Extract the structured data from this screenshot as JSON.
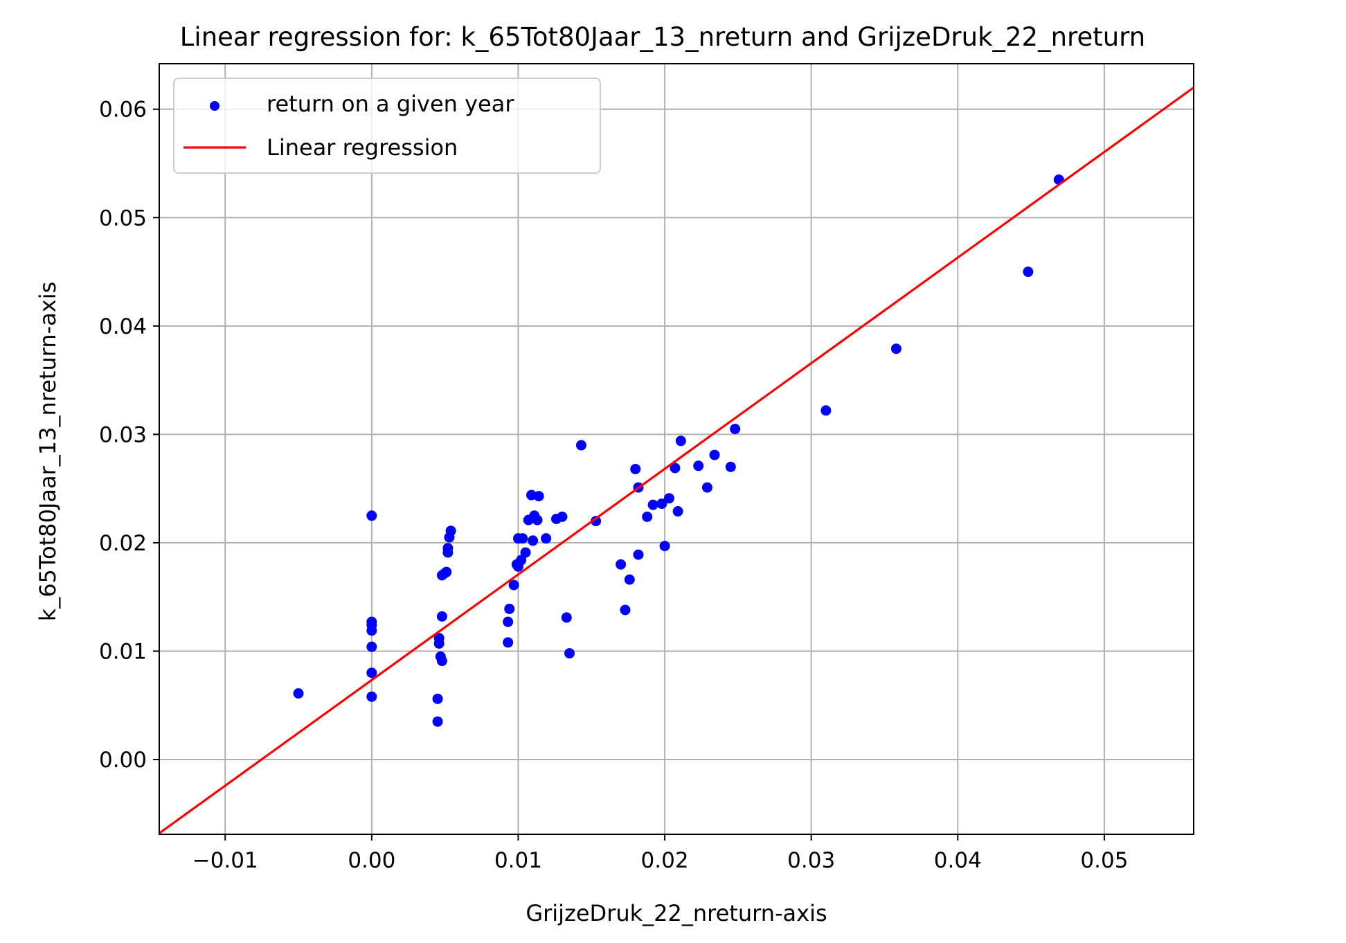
{
  "chart_data": {
    "type": "scatter",
    "title": "Linear regression for: k_65Tot80Jaar_13_nreturn and GrijzeDruk_22_nreturn",
    "xlabel": "GrijzeDruk_22_nreturn-axis",
    "ylabel": "k_65Tot80Jaar_13_nreturn-axis",
    "xlim": [
      -0.0145,
      0.0561
    ],
    "ylim": [
      -0.0069,
      0.0642
    ],
    "xticks": [
      -0.01,
      0.0,
      0.01,
      0.02,
      0.03,
      0.04,
      0.05
    ],
    "xtick_labels": [
      "−0.01",
      "0.00",
      "0.01",
      "0.02",
      "0.03",
      "0.04",
      "0.05"
    ],
    "yticks": [
      0.0,
      0.01,
      0.02,
      0.03,
      0.04,
      0.05,
      0.06
    ],
    "ytick_labels": [
      "0.00",
      "0.01",
      "0.02",
      "0.03",
      "0.04",
      "0.05",
      "0.06"
    ],
    "grid": true,
    "legend_position": "upper-left",
    "series": [
      {
        "name": "return on a given year",
        "kind": "scatter",
        "color": "#0000ff",
        "points": [
          [
            -0.005,
            0.0061
          ],
          [
            0.0,
            0.0225
          ],
          [
            0.0,
            0.0127
          ],
          [
            0.0,
            0.0124
          ],
          [
            0.0,
            0.0119
          ],
          [
            0.0,
            0.0104
          ],
          [
            0.0,
            0.008
          ],
          [
            0.0,
            0.0058
          ],
          [
            0.0045,
            0.0056
          ],
          [
            0.0045,
            0.0035
          ],
          [
            0.0046,
            0.0112
          ],
          [
            0.0046,
            0.0107
          ],
          [
            0.0047,
            0.0095
          ],
          [
            0.0048,
            0.0091
          ],
          [
            0.0048,
            0.0132
          ],
          [
            0.0048,
            0.017
          ],
          [
            0.005,
            0.0172
          ],
          [
            0.0051,
            0.0173
          ],
          [
            0.0052,
            0.0195
          ],
          [
            0.0052,
            0.0191
          ],
          [
            0.0053,
            0.0205
          ],
          [
            0.0054,
            0.0211
          ],
          [
            0.0093,
            0.0127
          ],
          [
            0.0093,
            0.0108
          ],
          [
            0.0094,
            0.0139
          ],
          [
            0.0097,
            0.0161
          ],
          [
            0.0099,
            0.018
          ],
          [
            0.01,
            0.0204
          ],
          [
            0.01,
            0.0178
          ],
          [
            0.0102,
            0.0184
          ],
          [
            0.0103,
            0.0204
          ],
          [
            0.0105,
            0.0191
          ],
          [
            0.0107,
            0.0221
          ],
          [
            0.0109,
            0.0244
          ],
          [
            0.011,
            0.0202
          ],
          [
            0.0111,
            0.0225
          ],
          [
            0.0113,
            0.0221
          ],
          [
            0.0114,
            0.0243
          ],
          [
            0.0119,
            0.0204
          ],
          [
            0.0126,
            0.0222
          ],
          [
            0.013,
            0.0224
          ],
          [
            0.0133,
            0.0131
          ],
          [
            0.0135,
            0.0098
          ],
          [
            0.0143,
            0.029
          ],
          [
            0.0153,
            0.022
          ],
          [
            0.017,
            0.018
          ],
          [
            0.0173,
            0.0138
          ],
          [
            0.0176,
            0.0166
          ],
          [
            0.018,
            0.0268
          ],
          [
            0.0182,
            0.0189
          ],
          [
            0.0182,
            0.0251
          ],
          [
            0.0188,
            0.0224
          ],
          [
            0.0192,
            0.0235
          ],
          [
            0.0198,
            0.0236
          ],
          [
            0.02,
            0.0197
          ],
          [
            0.0203,
            0.0241
          ],
          [
            0.0207,
            0.0269
          ],
          [
            0.0209,
            0.0229
          ],
          [
            0.0211,
            0.0294
          ],
          [
            0.0223,
            0.0271
          ],
          [
            0.0229,
            0.0251
          ],
          [
            0.0234,
            0.0281
          ],
          [
            0.0245,
            0.027
          ],
          [
            0.0248,
            0.0305
          ],
          [
            0.031,
            0.0322
          ],
          [
            0.0358,
            0.0379
          ],
          [
            0.0448,
            0.045
          ],
          [
            0.0469,
            0.0535
          ]
        ]
      },
      {
        "name": "Linear regression",
        "kind": "line",
        "color": "#ff0000",
        "x": [
          -0.0145,
          0.0561
        ],
        "y": [
          -0.0068,
          0.062
        ]
      }
    ]
  }
}
